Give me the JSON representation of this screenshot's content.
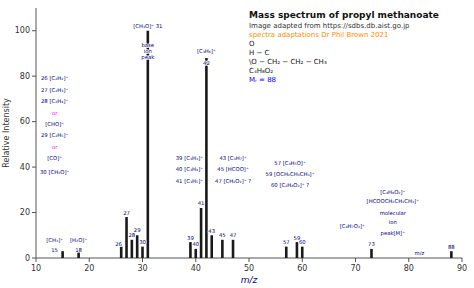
{
  "chart_data": {
    "type": "bar",
    "title": "Mass spectrum of propyl methanoate",
    "x_label": "m/z",
    "y_label": "Relative Intensity",
    "x": [
      15,
      18,
      26,
      27,
      28,
      29,
      30,
      31,
      39,
      40,
      41,
      42,
      43,
      45,
      47,
      57,
      59,
      60,
      73,
      88
    ],
    "values": [
      3,
      3,
      5,
      18,
      8,
      10,
      5,
      100,
      7,
      4,
      22,
      88,
      10,
      8,
      8,
      5,
      7,
      5,
      4,
      3
    ],
    "color": "#1a1a1a",
    "xlim": [
      10,
      90
    ],
    "ylim": [
      0,
      110
    ],
    "xticks": [
      10,
      20,
      30,
      40,
      50,
      60,
      70,
      80,
      90
    ],
    "yticks": [
      0,
      20,
      40,
      60,
      80,
      100
    ],
    "annotations": [
      {
        "text": "[CH₃O]⁺ 31",
        "x": 31,
        "y": 102
      },
      {
        "text": "base\nion\npeak",
        "x": 31,
        "y": 91
      },
      {
        "text": "[C₃H₆]⁺",
        "x": 42,
        "y": 91
      },
      {
        "text": "42",
        "x": 42,
        "y": 86
      },
      {
        "text": "26 [C₂H₂]⁺",
        "x": 13.5,
        "y": 79
      },
      {
        "text": "27 [C₂H₃]⁺",
        "x": 13.5,
        "y": 74
      },
      {
        "text": "28 [C₂H₄]⁺",
        "x": 13.5,
        "y": 69
      },
      {
        "text": "or",
        "x": 13.5,
        "y": 64,
        "color": "magenta"
      },
      {
        "text": "[CHO]⁺",
        "x": 13.5,
        "y": 59
      },
      {
        "text": "29 [C₂H₅]⁺",
        "x": 13.5,
        "y": 54
      },
      {
        "text": "or",
        "x": 13.5,
        "y": 49,
        "color": "magenta"
      },
      {
        "text": "[CO]⁺",
        "x": 13.5,
        "y": 44
      },
      {
        "text": "30 [CH₂O]⁺",
        "x": 13.5,
        "y": 38
      },
      {
        "text": "[CH₃]⁺",
        "x": 13.5,
        "y": 8
      },
      {
        "text": "15",
        "x": 13.5,
        "y": 3.5
      },
      {
        "text": "[H₂O]⁺",
        "x": 18,
        "y": 8
      },
      {
        "text": "18",
        "x": 18,
        "y": 3.5
      },
      {
        "text": "26",
        "x": 25.5,
        "y": 6
      },
      {
        "text": "27",
        "x": 27,
        "y": 20
      },
      {
        "text": "28",
        "x": 28,
        "y": 10
      },
      {
        "text": "29",
        "x": 29,
        "y": 12.5
      },
      {
        "text": "30",
        "x": 30,
        "y": 7
      },
      {
        "text": "39 [C₃H₃]⁺",
        "x": 38.8,
        "y": 44
      },
      {
        "text": "40 [C₃H₄]⁺",
        "x": 38.8,
        "y": 39
      },
      {
        "text": "41 [C₃H₅]⁺",
        "x": 38.8,
        "y": 34
      },
      {
        "text": "39",
        "x": 39,
        "y": 9
      },
      {
        "text": "40",
        "x": 40,
        "y": 6
      },
      {
        "text": "41",
        "x": 41,
        "y": 24
      },
      {
        "text": "43 [C₃H₇]⁺",
        "x": 47,
        "y": 44
      },
      {
        "text": "45 [HCOO]⁺",
        "x": 47,
        "y": 39
      },
      {
        "text": "47 [CH₂O₂]⁺ ?",
        "x": 47,
        "y": 34
      },
      {
        "text": "43",
        "x": 43,
        "y": 12
      },
      {
        "text": "45",
        "x": 45,
        "y": 10
      },
      {
        "text": "47",
        "x": 47,
        "y": 10
      },
      {
        "text": "57 [C₃H₅O]⁺",
        "x": 57.7,
        "y": 42
      },
      {
        "text": "59 [OCH₂CH₂CH₃]⁺",
        "x": 57.7,
        "y": 37
      },
      {
        "text": "60 [C₂H₄O₂]⁺ ?",
        "x": 57.7,
        "y": 32
      },
      {
        "text": "57",
        "x": 57,
        "y": 7
      },
      {
        "text": "59",
        "x": 59,
        "y": 9
      },
      {
        "text": "60",
        "x": 60,
        "y": 7
      },
      {
        "text": "[C₄H₇O₂]⁺",
        "x": 69.4,
        "y": 14
      },
      {
        "text": "73",
        "x": 73,
        "y": 6
      },
      {
        "text": "[C₄H₈O₂]⁺",
        "x": 77,
        "y": 29
      },
      {
        "text": "[HCOOCH₂CH₂CH₃]⁺",
        "x": 77,
        "y": 25
      },
      {
        "text": "molecular",
        "x": 77,
        "y": 20
      },
      {
        "text": "ion",
        "x": 77,
        "y": 16
      },
      {
        "text": "peak[M]⁺",
        "x": 77,
        "y": 11
      },
      {
        "text": "88",
        "x": 88,
        "y": 5
      },
      {
        "text": "m/z",
        "x": 82,
        "y": 2
      },
      {
        "text": "Image adapted from https://sdbs.db.aist.go.jp",
        "color": "#333333"
      },
      {
        "text": "spectra adaptations Dr Phil Brown 2021",
        "color": "darkorange"
      },
      {
        "text": "O"
      },
      {
        "text": "H − C"
      },
      {
        "text": "\\O − CH₂ − CH₂ − CH₃"
      },
      {
        "text": "C₄H₈O₂"
      },
      {
        "text": "Mᵣ = 88",
        "color": "blue"
      }
    ]
  }
}
